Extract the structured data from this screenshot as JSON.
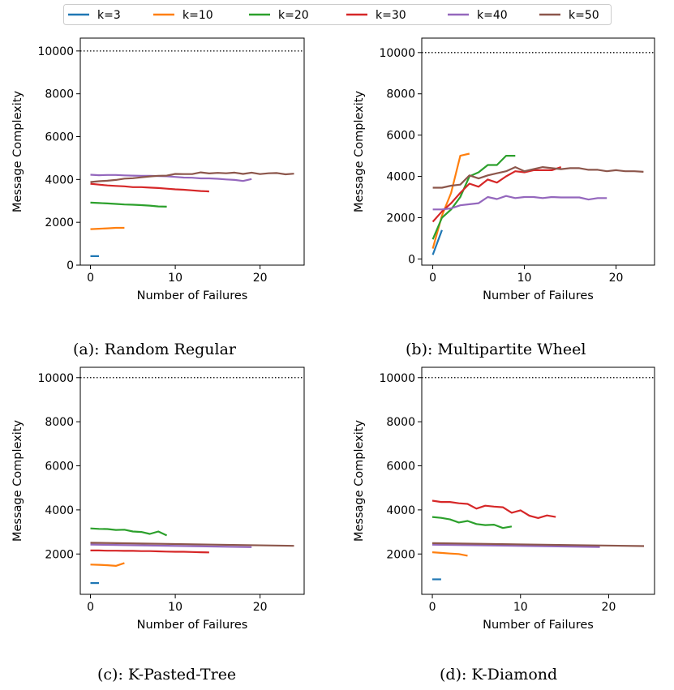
{
  "legend": [
    {
      "label": "k=3",
      "color": "#1f77b4"
    },
    {
      "label": "k=10",
      "color": "#ff7f0e"
    },
    {
      "label": "k=20",
      "color": "#2ca02c"
    },
    {
      "label": "k=30",
      "color": "#d62728"
    },
    {
      "label": "k=40",
      "color": "#9467bd"
    },
    {
      "label": "k=50",
      "color": "#8c564b"
    }
  ],
  "chart_data": [
    {
      "type": "line",
      "caption": "(a): Random Regular",
      "xlabel": "Number of Failures",
      "ylabel": "Message Complexity",
      "xlim": [
        -1.2,
        25.2
      ],
      "ylim": [
        0,
        10600
      ],
      "xticks": [
        0,
        10,
        20
      ],
      "yticks": [
        0,
        2000,
        4000,
        6000,
        8000,
        10000
      ],
      "reference_line": 10000,
      "series": [
        {
          "name": "k=3",
          "x": [
            0,
            1
          ],
          "y": [
            420,
            420
          ]
        },
        {
          "name": "k=10",
          "x": [
            0,
            1,
            2,
            3,
            4
          ],
          "y": [
            1680,
            1700,
            1720,
            1740,
            1740
          ]
        },
        {
          "name": "k=20",
          "x": [
            0,
            1,
            2,
            3,
            4,
            5,
            6,
            7,
            8,
            9
          ],
          "y": [
            2920,
            2900,
            2880,
            2860,
            2830,
            2820,
            2800,
            2780,
            2740,
            2730
          ]
        },
        {
          "name": "k=30",
          "x": [
            0,
            1,
            2,
            3,
            4,
            5,
            6,
            7,
            8,
            9,
            10,
            11,
            12,
            13,
            14
          ],
          "y": [
            3800,
            3760,
            3720,
            3700,
            3680,
            3640,
            3640,
            3620,
            3600,
            3570,
            3540,
            3520,
            3490,
            3460,
            3440
          ]
        },
        {
          "name": "k=40",
          "x": [
            0,
            1,
            2,
            3,
            4,
            5,
            6,
            7,
            8,
            9,
            10,
            11,
            12,
            13,
            14,
            15,
            16,
            17,
            18,
            19
          ],
          "y": [
            4220,
            4200,
            4210,
            4210,
            4190,
            4180,
            4170,
            4170,
            4160,
            4150,
            4120,
            4090,
            4080,
            4050,
            4050,
            4030,
            4000,
            3980,
            3930,
            4020
          ]
        },
        {
          "name": "k=50",
          "x": [
            0,
            1,
            2,
            3,
            4,
            5,
            6,
            7,
            8,
            9,
            10,
            11,
            12,
            13,
            14,
            15,
            16,
            17,
            18,
            19,
            20,
            21,
            22,
            23,
            24
          ],
          "y": [
            3880,
            3920,
            3940,
            3980,
            4040,
            4060,
            4100,
            4140,
            4170,
            4180,
            4260,
            4250,
            4250,
            4330,
            4280,
            4310,
            4290,
            4320,
            4260,
            4320,
            4250,
            4290,
            4300,
            4240,
            4270
          ]
        }
      ]
    },
    {
      "type": "line",
      "caption": "(b): Multipartite Wheel",
      "xlabel": "Number of Failures",
      "ylabel": "Message Complexity",
      "xlim": [
        -1.2,
        24.2
      ],
      "ylim": [
        -300,
        10700
      ],
      "xticks": [
        0,
        10,
        20
      ],
      "yticks": [
        0,
        2000,
        4000,
        6000,
        8000,
        10000
      ],
      "reference_line": 10000,
      "series": [
        {
          "name": "k=3",
          "x": [
            0,
            1
          ],
          "y": [
            200,
            1400
          ]
        },
        {
          "name": "k=10",
          "x": [
            0,
            1,
            2,
            3,
            4
          ],
          "y": [
            500,
            2100,
            3200,
            5000,
            5100
          ]
        },
        {
          "name": "k=20",
          "x": [
            0,
            1,
            2,
            3,
            4,
            5,
            6,
            7,
            8,
            9
          ],
          "y": [
            950,
            2000,
            2400,
            3000,
            4000,
            4200,
            4550,
            4550,
            5000,
            5000
          ]
        },
        {
          "name": "k=30",
          "x": [
            0,
            1,
            2,
            3,
            4,
            5,
            6,
            7,
            8,
            9,
            10,
            11,
            12,
            13,
            14
          ],
          "y": [
            1800,
            2300,
            2700,
            3200,
            3650,
            3500,
            3850,
            3700,
            4000,
            4250,
            4200,
            4300,
            4300,
            4300,
            4450
          ]
        },
        {
          "name": "k=40",
          "x": [
            0,
            1,
            2,
            3,
            4,
            5,
            6,
            7,
            8,
            9,
            10,
            11,
            12,
            13,
            14,
            15,
            16,
            17,
            18,
            19
          ],
          "y": [
            2400,
            2400,
            2450,
            2600,
            2650,
            2700,
            3000,
            2900,
            3050,
            2950,
            3000,
            3000,
            2950,
            3000,
            2980,
            2980,
            2980,
            2880,
            2950,
            2950
          ]
        },
        {
          "name": "k=50",
          "x": [
            0,
            1,
            2,
            3,
            4,
            5,
            6,
            7,
            8,
            9,
            10,
            11,
            12,
            13,
            14,
            15,
            16,
            17,
            18,
            19,
            20,
            21,
            22,
            23
          ],
          "y": [
            3450,
            3450,
            3550,
            3600,
            4050,
            3900,
            4050,
            4150,
            4250,
            4450,
            4250,
            4350,
            4450,
            4400,
            4350,
            4400,
            4400,
            4320,
            4320,
            4250,
            4300,
            4250,
            4250,
            4220
          ]
        }
      ]
    },
    {
      "type": "line",
      "caption": "(c): K-Pasted-Tree",
      "xlabel": "Number of Failures",
      "ylabel": "Message Complexity",
      "xlim": [
        -1.2,
        25.2
      ],
      "ylim": [
        170,
        10470
      ],
      "xticks": [
        0,
        10,
        20
      ],
      "yticks": [
        2000,
        4000,
        6000,
        8000,
        10000
      ],
      "reference_line": 10000,
      "series": [
        {
          "name": "k=3",
          "x": [
            0,
            1
          ],
          "y": [
            680,
            680
          ]
        },
        {
          "name": "k=10",
          "x": [
            0,
            1,
            2,
            3,
            4
          ],
          "y": [
            1520,
            1510,
            1490,
            1460,
            1590
          ]
        },
        {
          "name": "k=20",
          "x": [
            0,
            1,
            2,
            3,
            4,
            5,
            6,
            7,
            8,
            9
          ],
          "y": [
            3160,
            3140,
            3130,
            3090,
            3100,
            3020,
            3000,
            2910,
            3020,
            2840
          ]
        },
        {
          "name": "k=30",
          "x": [
            0,
            1,
            2,
            3,
            4,
            5,
            6,
            7,
            8,
            9,
            10,
            11,
            12,
            13,
            14
          ],
          "y": [
            2160,
            2160,
            2150,
            2150,
            2140,
            2140,
            2130,
            2130,
            2120,
            2110,
            2100,
            2100,
            2090,
            2080,
            2070
          ]
        },
        {
          "name": "k=40",
          "x": [
            0,
            19
          ],
          "y": [
            2430,
            2310
          ]
        },
        {
          "name": "k=50",
          "x": [
            0,
            24
          ],
          "y": [
            2510,
            2370
          ]
        }
      ]
    },
    {
      "type": "line",
      "caption": "(d): K-Diamond",
      "xlabel": "Number of Failures",
      "ylabel": "Message Complexity",
      "xlim": [
        -1.2,
        25.2
      ],
      "ylim": [
        170,
        10470
      ],
      "xticks": [
        0,
        10,
        20
      ],
      "yticks": [
        2000,
        4000,
        6000,
        8000,
        10000
      ],
      "reference_line": 10000,
      "series": [
        {
          "name": "k=3",
          "x": [
            0,
            1
          ],
          "y": [
            850,
            850
          ]
        },
        {
          "name": "k=10",
          "x": [
            0,
            1,
            2,
            3,
            4
          ],
          "y": [
            2080,
            2050,
            2020,
            2000,
            1920
          ]
        },
        {
          "name": "k=20",
          "x": [
            0,
            1,
            2,
            3,
            4,
            5,
            6,
            7,
            8,
            9
          ],
          "y": [
            3680,
            3640,
            3570,
            3430,
            3500,
            3360,
            3310,
            3330,
            3180,
            3250
          ]
        },
        {
          "name": "k=30",
          "x": [
            0,
            1,
            2,
            3,
            4,
            5,
            6,
            7,
            8,
            9,
            10,
            11,
            12,
            13,
            14
          ],
          "y": [
            4420,
            4360,
            4360,
            4300,
            4270,
            4060,
            4190,
            4150,
            4120,
            3870,
            3980,
            3740,
            3630,
            3750,
            3680
          ]
        },
        {
          "name": "k=40",
          "x": [
            0,
            19
          ],
          "y": [
            2420,
            2320
          ]
        },
        {
          "name": "k=50",
          "x": [
            0,
            24
          ],
          "y": [
            2490,
            2360
          ]
        }
      ]
    }
  ]
}
